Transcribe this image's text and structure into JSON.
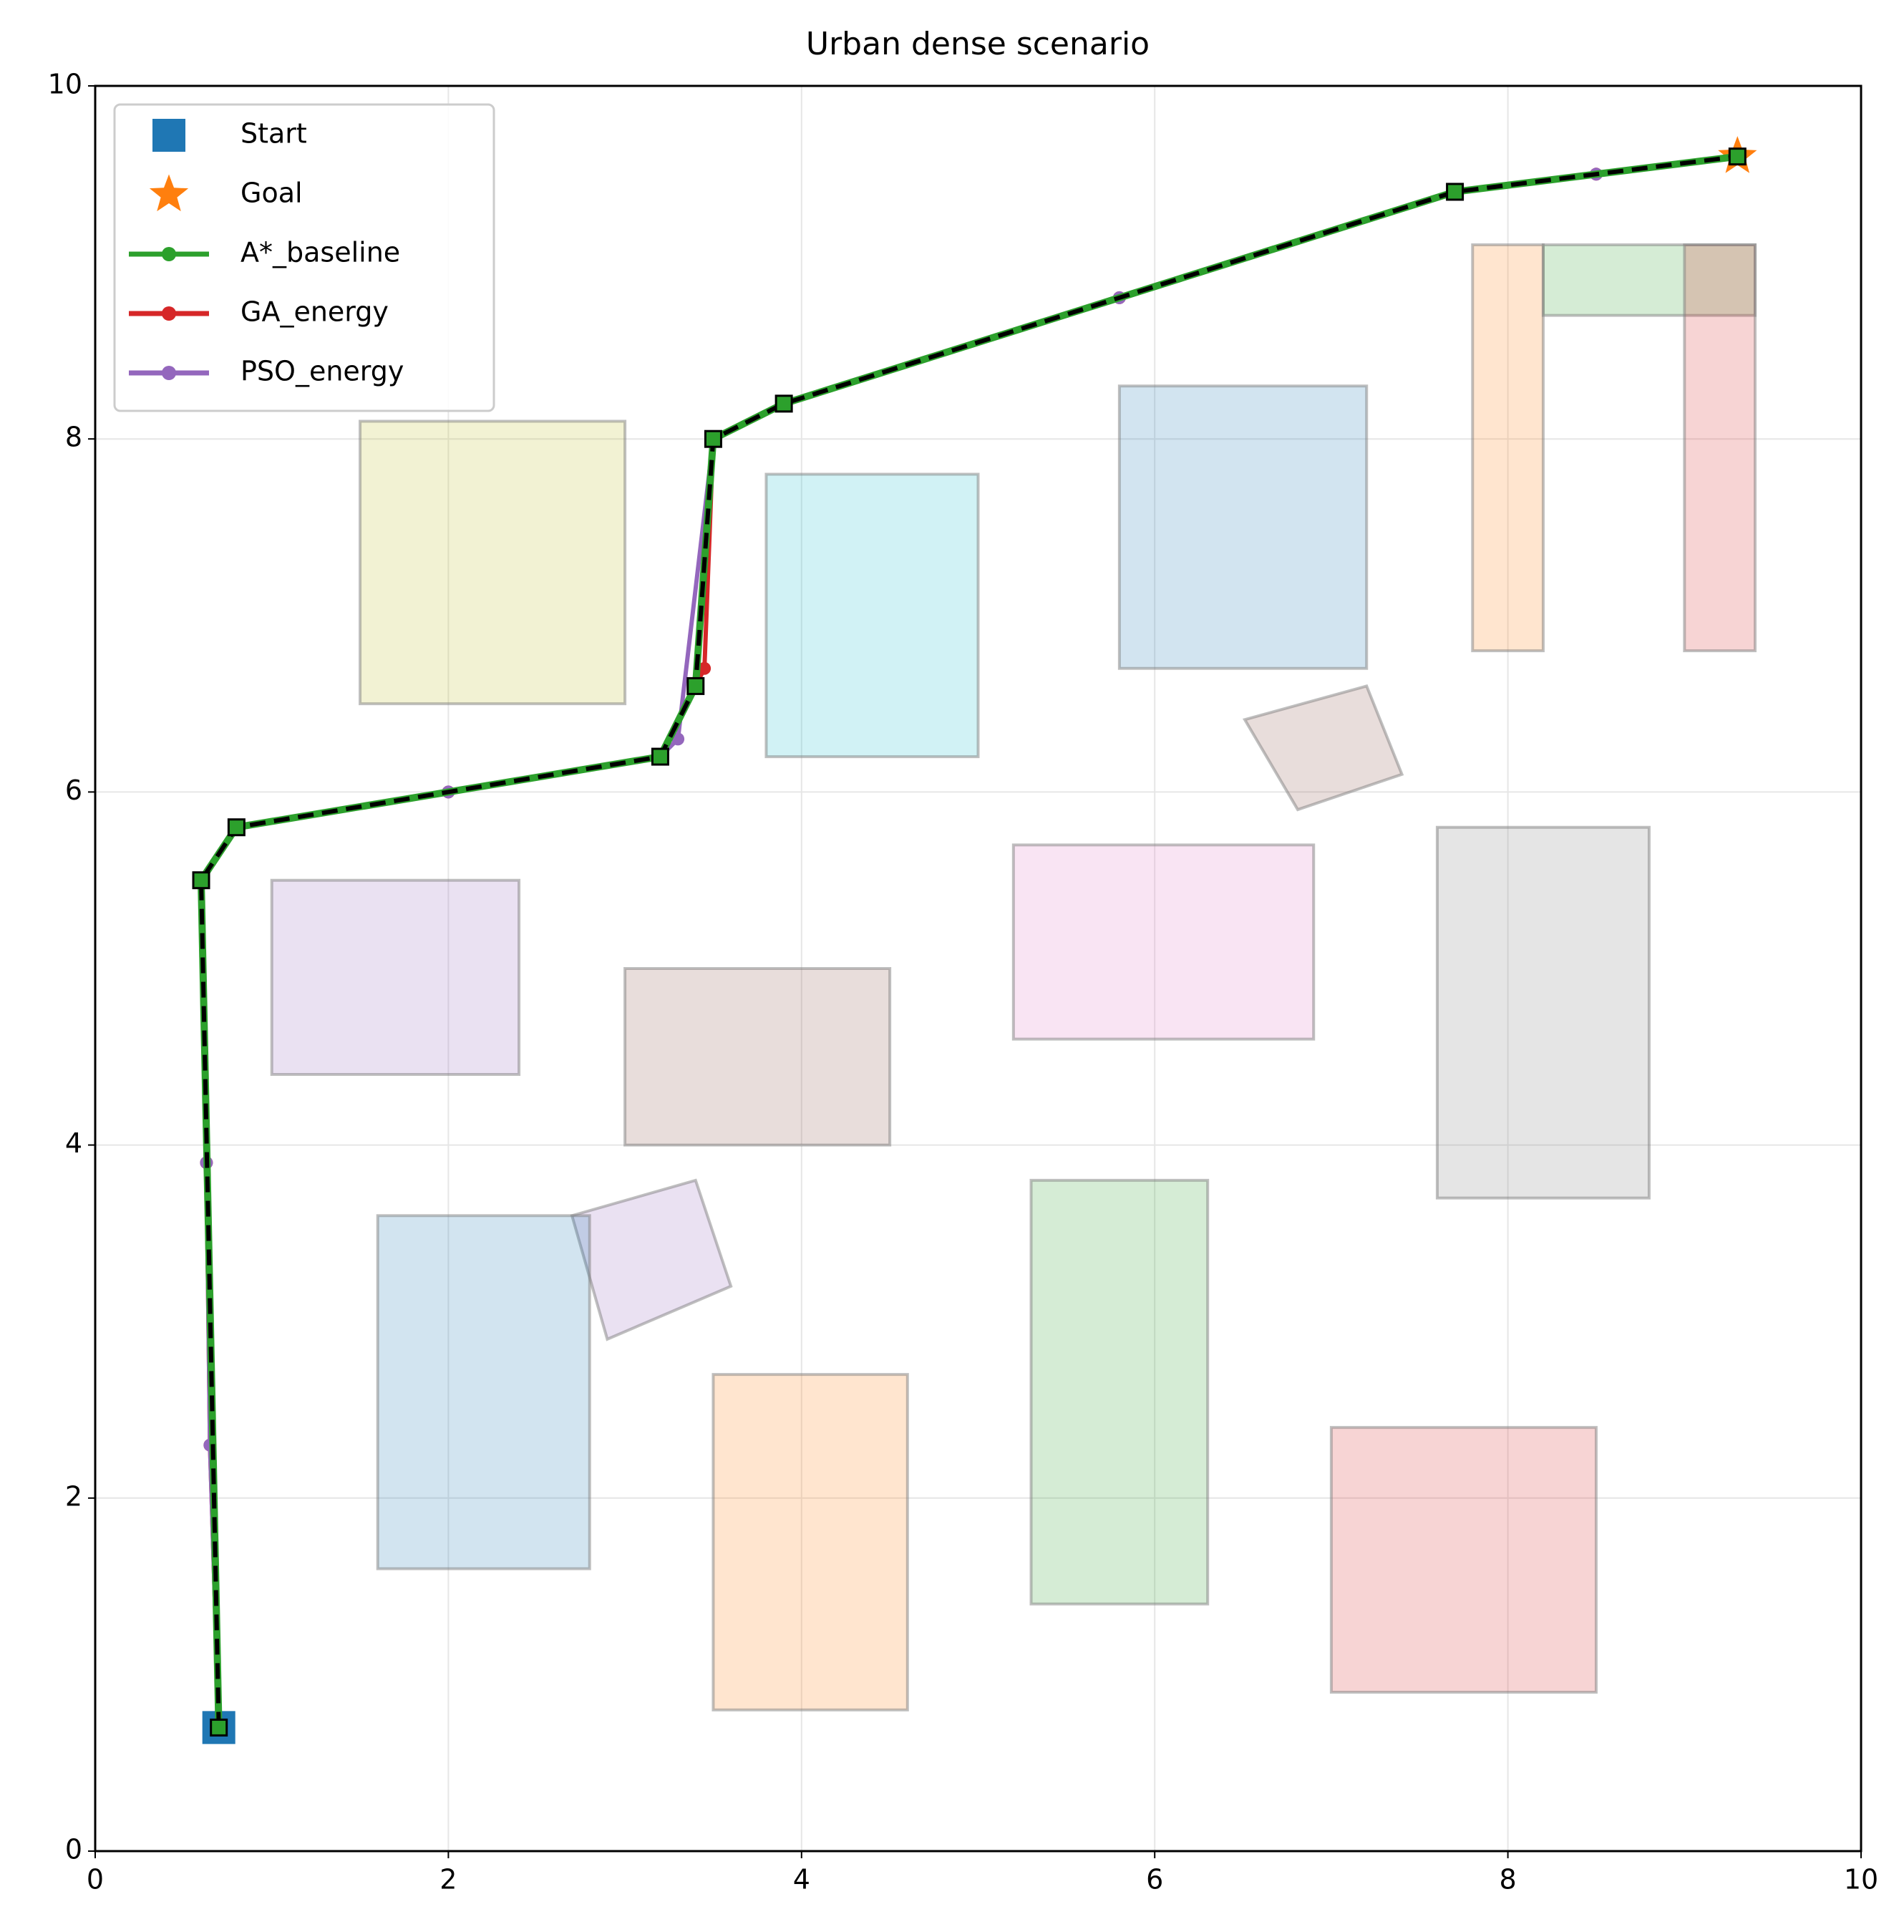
{
  "chart_data": {
    "type": "path",
    "title": "Urban dense scenario",
    "xlim": [
      0,
      10
    ],
    "ylim": [
      0,
      10
    ],
    "xticks": [
      0,
      2,
      4,
      6,
      8,
      10
    ],
    "yticks": [
      0,
      2,
      4,
      6,
      8,
      10
    ],
    "grid": true,
    "legend": "upper left",
    "obstacles": [
      {
        "color": "#bcbd22",
        "x": [
          1.5,
          3.0,
          3.0,
          1.5
        ],
        "y": [
          6.5,
          6.5,
          8.1,
          8.1
        ]
      },
      {
        "color": "#17becf",
        "x": [
          3.8,
          5.0,
          5.0,
          3.8
        ],
        "y": [
          6.2,
          6.2,
          7.8,
          7.8
        ]
      },
      {
        "color": "#1f77b4",
        "x": [
          5.8,
          7.2,
          7.2,
          5.8
        ],
        "y": [
          6.7,
          6.7,
          8.3,
          8.3
        ]
      },
      {
        "color": "#ff7f0e",
        "x": [
          7.8,
          8.2,
          8.2,
          7.8
        ],
        "y": [
          6.8,
          6.8,
          9.1,
          9.1
        ]
      },
      {
        "color": "#2ca02c",
        "x": [
          8.2,
          9.4,
          9.4,
          8.2
        ],
        "y": [
          8.7,
          8.7,
          9.1,
          9.1
        ]
      },
      {
        "color": "#d62728",
        "x": [
          9.0,
          9.4,
          9.4,
          9.0
        ],
        "y": [
          6.8,
          6.8,
          9.1,
          9.1
        ]
      },
      {
        "color": "#8c564b",
        "x": [
          6.51,
          7.2,
          7.4,
          6.81
        ],
        "y": [
          6.41,
          6.6,
          6.1,
          5.9
        ]
      },
      {
        "color": "#9467bd",
        "x": [
          1.0,
          2.4,
          2.4,
          1.0
        ],
        "y": [
          4.4,
          4.4,
          5.5,
          5.5
        ]
      },
      {
        "color": "#8c564b",
        "x": [
          3.0,
          4.5,
          4.5,
          3.0
        ],
        "y": [
          4.0,
          4.0,
          5.0,
          5.0
        ]
      },
      {
        "color": "#e377c2",
        "x": [
          5.2,
          6.9,
          6.9,
          5.2
        ],
        "y": [
          4.6,
          4.6,
          5.7,
          5.7
        ]
      },
      {
        "color": "#7f7f7f",
        "x": [
          7.6,
          8.8,
          8.8,
          7.6
        ],
        "y": [
          3.7,
          3.7,
          5.8,
          5.8
        ]
      },
      {
        "color": "#9467bd",
        "x": [
          2.7,
          3.4,
          3.6,
          2.9
        ],
        "y": [
          3.6,
          3.8,
          3.2,
          2.9
        ]
      },
      {
        "color": "#1f77b4",
        "x": [
          1.6,
          2.8,
          2.8,
          1.6
        ],
        "y": [
          1.6,
          1.6,
          3.6,
          3.6
        ]
      },
      {
        "color": "#ff7f0e",
        "x": [
          3.5,
          4.6,
          4.6,
          3.5
        ],
        "y": [
          0.8,
          0.8,
          2.7,
          2.7
        ]
      },
      {
        "color": "#2ca02c",
        "x": [
          5.3,
          6.3,
          6.3,
          5.3
        ],
        "y": [
          1.4,
          1.4,
          3.8,
          3.8
        ]
      },
      {
        "color": "#d62728",
        "x": [
          7.0,
          8.5,
          8.5,
          7.0
        ],
        "y": [
          0.9,
          0.9,
          2.4,
          2.4
        ]
      }
    ],
    "markers": [
      {
        "name": "Start",
        "marker": "square",
        "color": "#1f77b4",
        "x": 0.7,
        "y": 0.7
      },
      {
        "name": "Goal",
        "marker": "star",
        "color": "#ff7f0e",
        "x": 9.3,
        "y": 9.6
      }
    ],
    "series": [
      {
        "name": "A*_baseline",
        "color": "#2ca02c",
        "x": [
          0.7,
          0.6,
          0.8,
          3.2,
          3.4,
          3.5,
          3.9,
          7.7,
          9.3
        ],
        "y": [
          0.7,
          5.5,
          5.8,
          6.2,
          6.6,
          8.0,
          8.2,
          9.4,
          9.6
        ]
      },
      {
        "name": "GA_energy",
        "color": "#d62728",
        "x": [
          0.7,
          0.65,
          0.63,
          0.6,
          0.8,
          2.0,
          3.2,
          3.45,
          3.5,
          3.9,
          5.8,
          7.7,
          8.5,
          9.3
        ],
        "y": [
          0.7,
          2.3,
          3.9,
          5.5,
          5.8,
          6.0,
          6.2,
          6.7,
          8.0,
          8.2,
          8.8,
          9.4,
          9.5,
          9.6
        ]
      },
      {
        "name": "PSO_energy",
        "color": "#9467bd",
        "x": [
          0.7,
          0.65,
          0.63,
          0.6,
          0.8,
          2.0,
          3.2,
          3.3,
          3.5,
          3.9,
          5.8,
          7.7,
          8.5,
          9.3
        ],
        "y": [
          0.7,
          2.3,
          3.9,
          5.5,
          5.8,
          6.0,
          6.2,
          6.3,
          8.0,
          8.2,
          8.8,
          9.4,
          9.5,
          9.6
        ]
      }
    ]
  }
}
